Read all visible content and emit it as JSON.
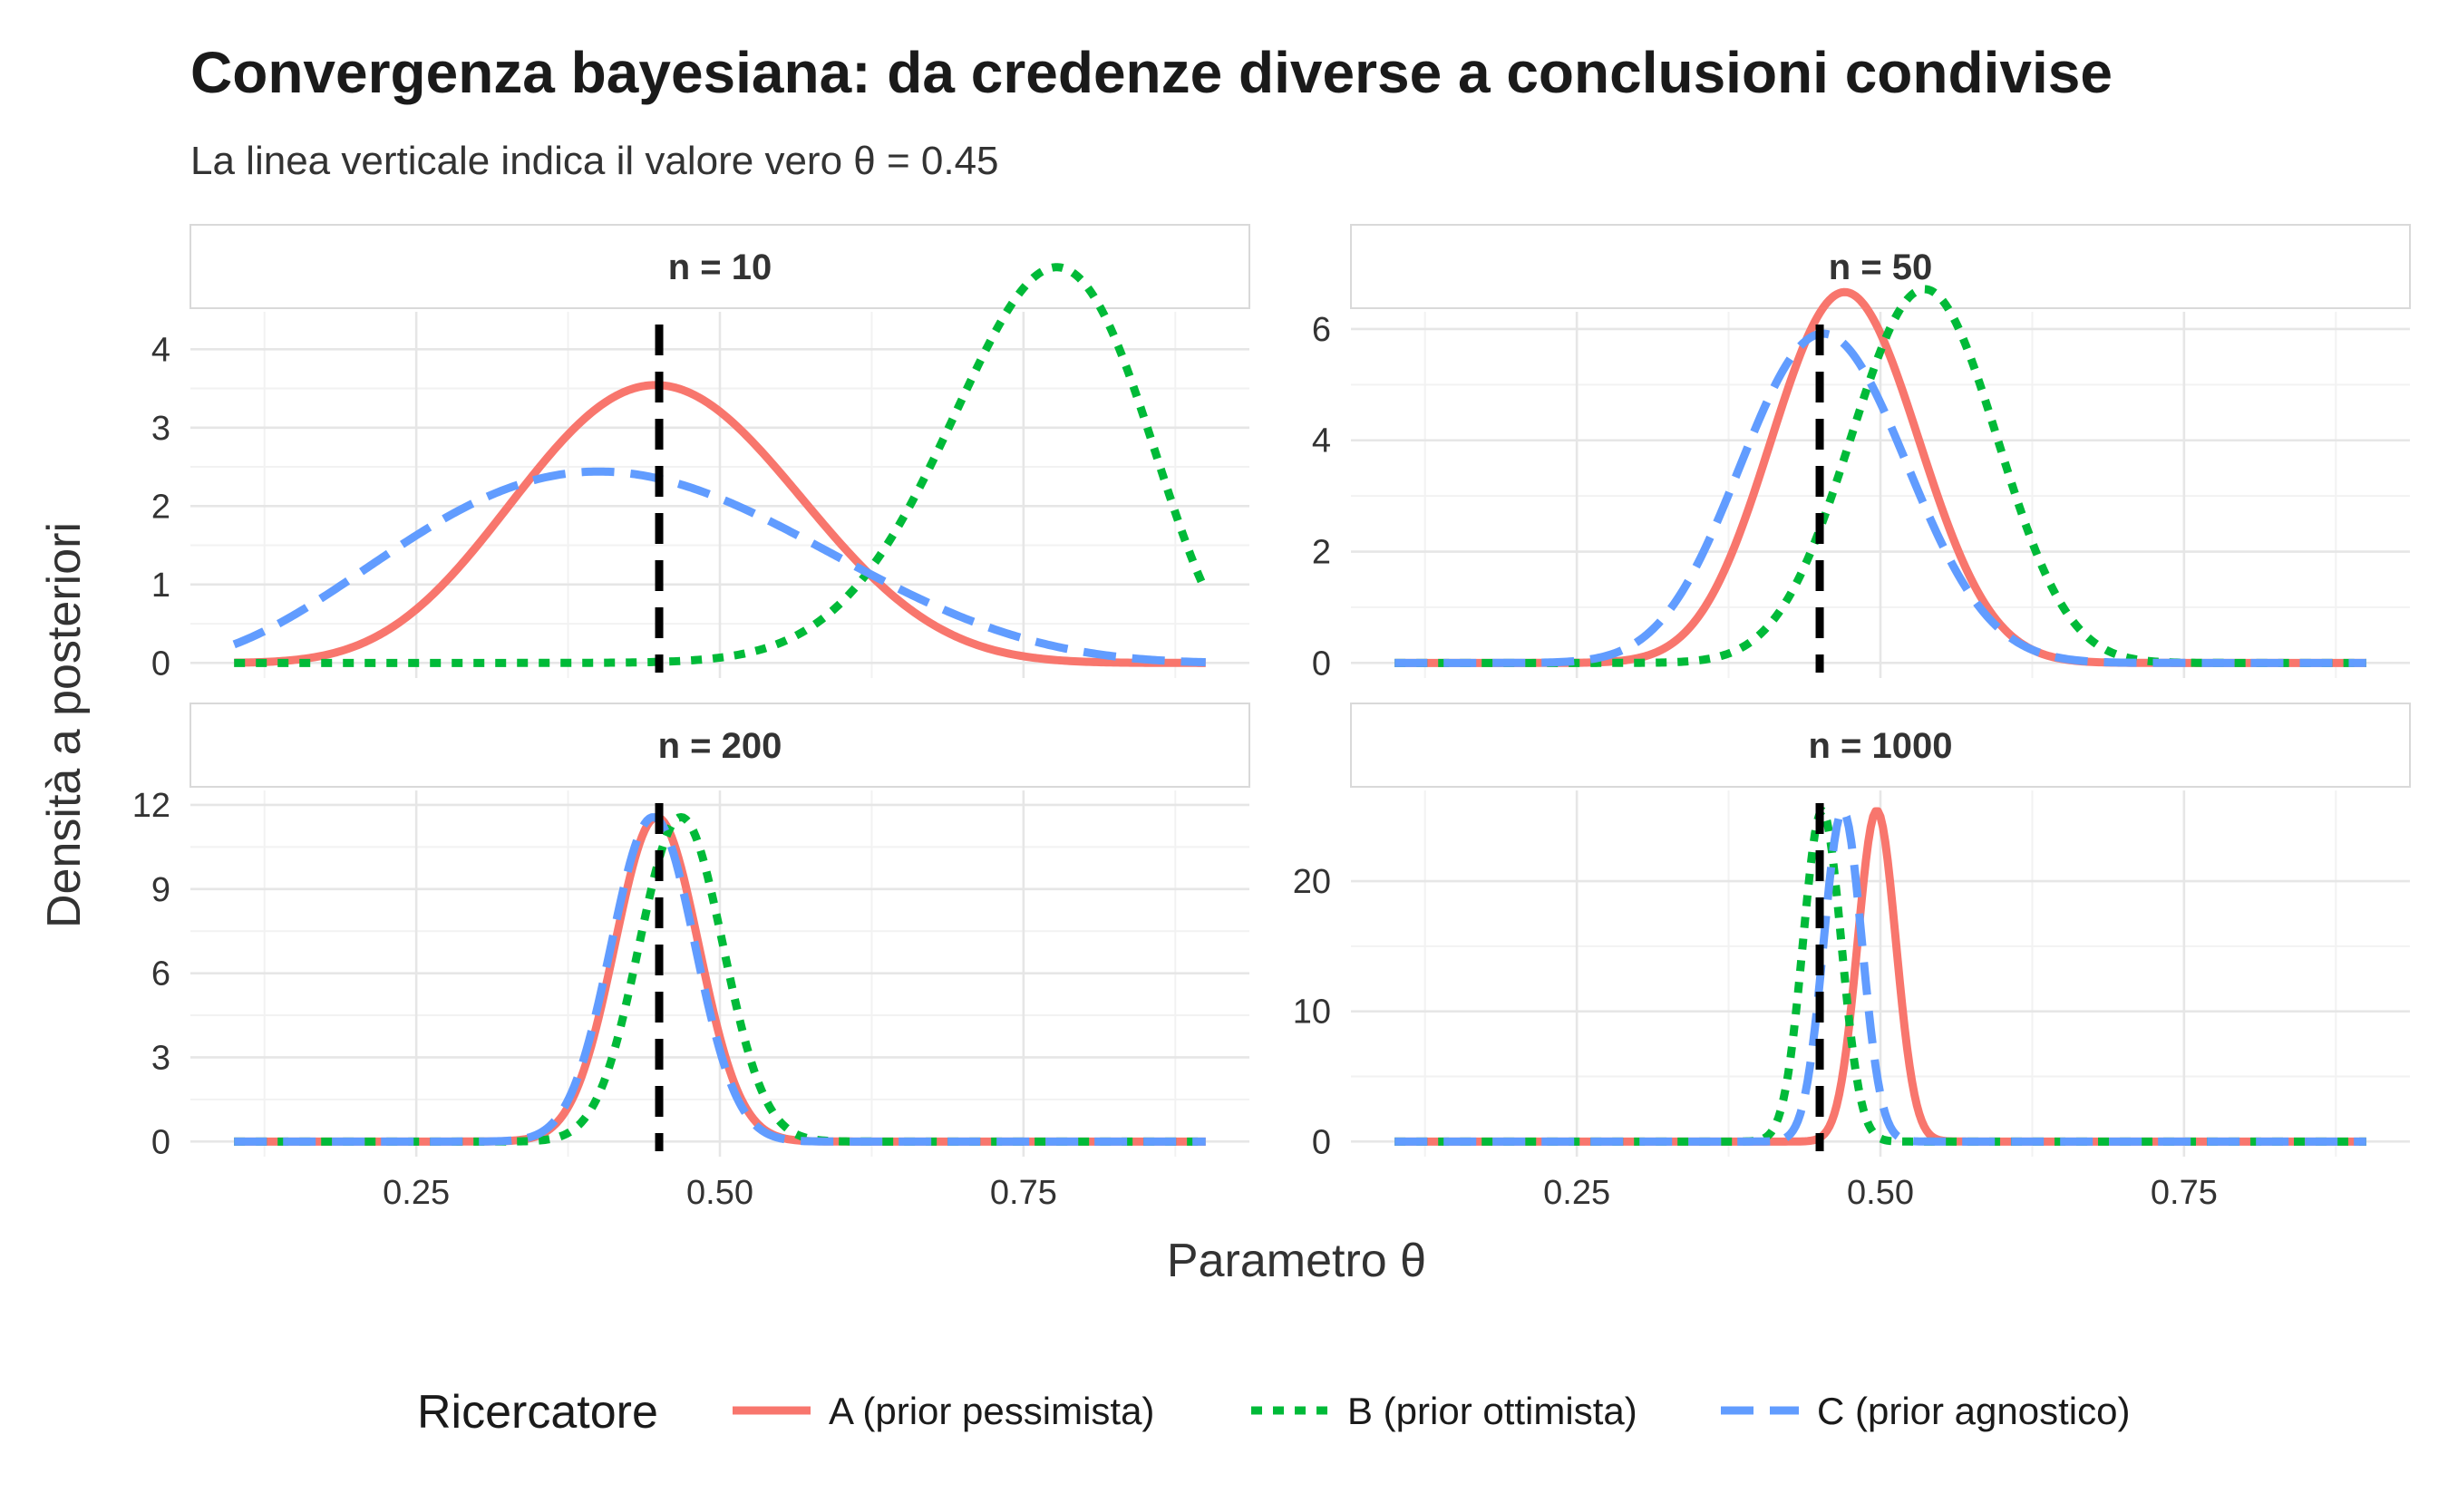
{
  "chart_data": {
    "type": "line",
    "title": "Convergenza bayesiana: da credenze diverse a conclusioni condivise",
    "subtitle": "La linea verticale indica il valore vero θ = 0.45",
    "xlabel": "Parametro θ",
    "ylabel": "Densità a posteriori",
    "xlim": [
      0.1,
      0.9
    ],
    "x_ticks": [
      0.25,
      0.5,
      0.75
    ],
    "x_tick_labels": [
      "0.25",
      "0.50",
      "0.75"
    ],
    "true_value": 0.45,
    "legend": {
      "title": "Ricercatore",
      "position": "bottom",
      "entries": [
        {
          "key": "A",
          "label": "A (prior pessimista)",
          "color": "#F8766D",
          "dash": "solid"
        },
        {
          "key": "B",
          "label": "B (prior ottimista)",
          "color": "#00BA38",
          "dash": "dotted"
        },
        {
          "key": "C",
          "label": "C (prior agnostico)",
          "color": "#619CFF",
          "dash": "dashed"
        }
      ]
    },
    "panels": [
      {
        "label": "n = 10",
        "ylim": [
          0,
          4.4
        ],
        "y_ticks": [
          0,
          1,
          2,
          3,
          4
        ],
        "y_tick_labels": [
          "0",
          "1",
          "2",
          "3",
          "4"
        ],
        "series": [
          {
            "key": "A",
            "dist": "beta",
            "a": 9.05,
            "b": 10.95
          },
          {
            "key": "B",
            "dist": "beta",
            "a": 21.6,
            "b": 6.9
          },
          {
            "key": "C",
            "dist": "beta",
            "a": 4,
            "b": 5.5
          }
        ]
      },
      {
        "label": "n = 50",
        "ylim": [
          0,
          6.2
        ],
        "y_ticks": [
          0,
          2,
          4,
          6
        ],
        "y_tick_labels": [
          "0",
          "2",
          "4",
          "6"
        ],
        "series": [
          {
            "key": "A",
            "dist": "beta",
            "a": 33,
            "b": 37
          },
          {
            "key": "B",
            "dist": "beta",
            "a": 38,
            "b": 33
          },
          {
            "key": "C",
            "dist": "beta",
            "a": 25,
            "b": 30
          }
        ]
      },
      {
        "label": "n = 200",
        "ylim": [
          0,
          12.3
        ],
        "y_ticks": [
          0,
          3,
          6,
          9,
          12
        ],
        "y_tick_labels": [
          "0",
          "3",
          "6",
          "9",
          "12"
        ],
        "series": [
          {
            "key": "A",
            "dist": "normal",
            "mean": 0.448,
            "sd": 0.0345
          },
          {
            "key": "B",
            "dist": "normal",
            "mean": 0.468,
            "sd": 0.0345
          },
          {
            "key": "C",
            "dist": "normal",
            "mean": 0.445,
            "sd": 0.0345
          }
        ]
      },
      {
        "label": "n = 1000",
        "ylim": [
          0,
          26.5
        ],
        "y_ticks": [
          0,
          10,
          20
        ],
        "y_tick_labels": [
          "0",
          "10",
          "20"
        ],
        "series": [
          {
            "key": "A",
            "dist": "normal",
            "mean": 0.497,
            "sd": 0.0157
          },
          {
            "key": "B",
            "dist": "normal",
            "mean": 0.452,
            "sd": 0.0157
          },
          {
            "key": "C",
            "dist": "normal",
            "mean": 0.469,
            "sd": 0.0157
          }
        ]
      }
    ]
  }
}
